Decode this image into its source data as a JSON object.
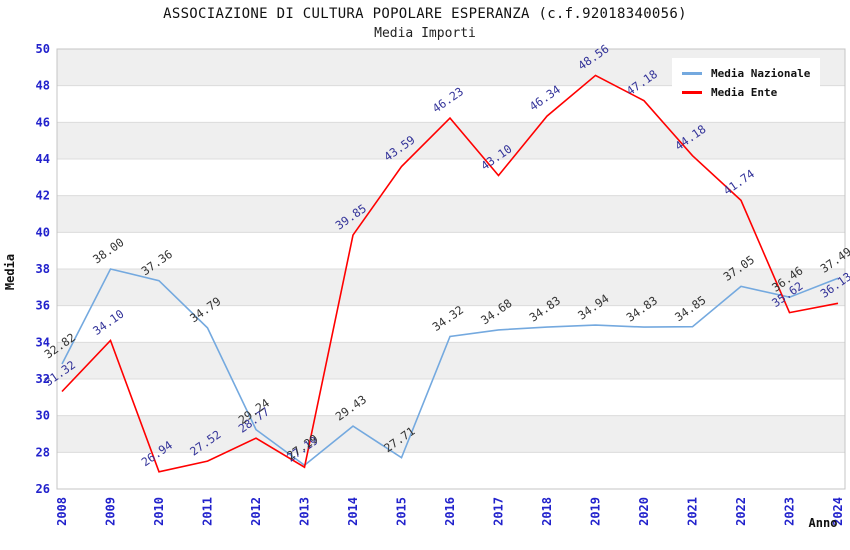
{
  "chart_data": {
    "type": "line",
    "title": "ASSOCIAZIONE DI CULTURA POPOLARE ESPERANZA (c.f.92018340056)",
    "subtitle": "Media Importi",
    "xlabel": "Anno",
    "ylabel": "Media",
    "ylim": [
      26,
      50
    ],
    "ytick_step": 2,
    "grid": "horizontal-bands-every-2-units",
    "legend_position": "top-right",
    "categories": [
      "2008",
      "2009",
      "2010",
      "2011",
      "2012",
      "2013",
      "2014",
      "2015",
      "2016",
      "2017",
      "2018",
      "2019",
      "2020",
      "2021",
      "2022",
      "2023",
      "2024"
    ],
    "series": [
      {
        "name": "Media Nazionale",
        "line_color": "#74A9DF",
        "label_color": "#333333",
        "values": [
          32.82,
          38.0,
          37.36,
          34.79,
          29.24,
          27.29,
          29.43,
          27.71,
          34.32,
          34.68,
          34.83,
          34.94,
          34.83,
          34.85,
          37.05,
          36.46,
          37.49
        ]
      },
      {
        "name": "Media Ente",
        "line_color": "#FF0000",
        "label_color": "#333399",
        "values": [
          31.32,
          34.1,
          26.94,
          27.52,
          28.77,
          27.19,
          39.85,
          43.59,
          46.23,
          43.1,
          46.34,
          48.56,
          47.18,
          44.18,
          41.74,
          35.62,
          36.13
        ]
      }
    ],
    "band_colors": [
      "#EFEFEF",
      "#FFFFFF"
    ],
    "gridline_color": "#DCDCDC",
    "border_color": "#C4C4C4",
    "tick_color": "#2222CC"
  }
}
